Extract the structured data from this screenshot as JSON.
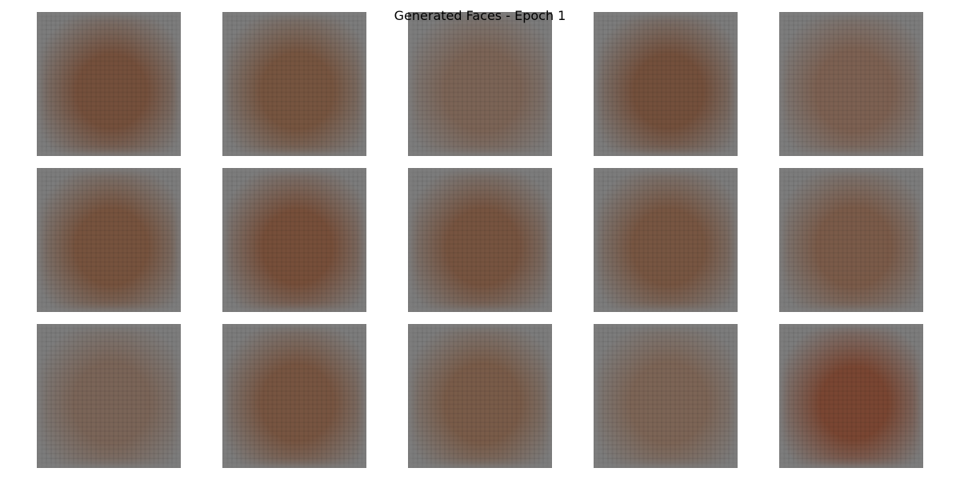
{
  "figure": {
    "title": "Generated Faces - Epoch 1",
    "grid": {
      "rows": 3,
      "cols": 5
    },
    "background_color": "#ffffff",
    "border_color": "#7d7d7d",
    "samples": [
      {
        "row": 0,
        "col": 0,
        "tint": "#75503c",
        "intensity": 0.85
      },
      {
        "row": 0,
        "col": 1,
        "tint": "#775540",
        "intensity": 0.75
      },
      {
        "row": 0,
        "col": 2,
        "tint": "#7c6456",
        "intensity": 0.45
      },
      {
        "row": 0,
        "col": 3,
        "tint": "#74503c",
        "intensity": 0.85
      },
      {
        "row": 0,
        "col": 4,
        "tint": "#7d6152",
        "intensity": 0.45
      },
      {
        "row": 1,
        "col": 0,
        "tint": "#77533e",
        "intensity": 0.75
      },
      {
        "row": 1,
        "col": 1,
        "tint": "#774f3a",
        "intensity": 0.85
      },
      {
        "row": 1,
        "col": 2,
        "tint": "#775440",
        "intensity": 0.75
      },
      {
        "row": 1,
        "col": 3,
        "tint": "#785642",
        "intensity": 0.7
      },
      {
        "row": 1,
        "col": 4,
        "tint": "#7b5b49",
        "intensity": 0.6
      },
      {
        "row": 2,
        "col": 0,
        "tint": "#7b6558",
        "intensity": 0.45
      },
      {
        "row": 2,
        "col": 1,
        "tint": "#785541",
        "intensity": 0.75
      },
      {
        "row": 2,
        "col": 2,
        "tint": "#7a5c49",
        "intensity": 0.6
      },
      {
        "row": 2,
        "col": 3,
        "tint": "#7d6556",
        "intensity": 0.45
      },
      {
        "row": 2,
        "col": 4,
        "tint": "#7a4632",
        "intensity": 1.0
      }
    ]
  }
}
